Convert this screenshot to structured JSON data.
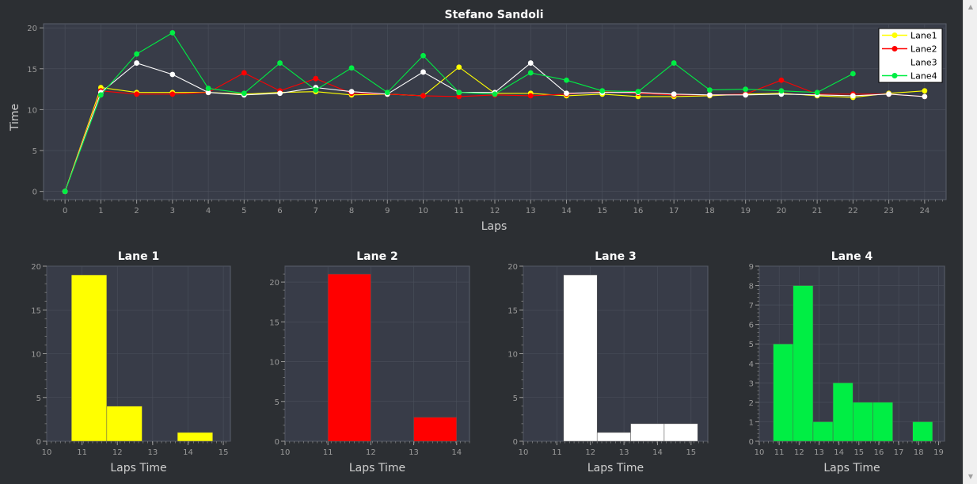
{
  "window": {
    "scrollbar": {
      "up_icon": "triangle-up-icon",
      "down_icon": "triangle-down-icon"
    }
  },
  "colors": {
    "background": "#2c2f33",
    "plot_background": "#383c48",
    "grid": "#4b505c",
    "axis_text": "#9a9a9a",
    "Lane1": "#ffff00",
    "Lane2": "#ff0000",
    "Lane3": "#ffffff",
    "Lane4": "#00ee44"
  },
  "chart_data": [
    {
      "type": "line",
      "title": "Stefano Sandoli",
      "xlabel": "Laps",
      "ylabel": "Time",
      "xlim": [
        -0.6,
        24.6
      ],
      "ylim": [
        -1,
        20.5
      ],
      "xticks": [
        0,
        1,
        2,
        3,
        4,
        5,
        6,
        7,
        8,
        9,
        10,
        11,
        12,
        13,
        14,
        15,
        16,
        17,
        18,
        19,
        20,
        21,
        22,
        23,
        24
      ],
      "yticks": [
        0,
        5,
        10,
        15,
        20
      ],
      "grid": true,
      "legend_position": "top-right",
      "series": [
        {
          "name": "Lane1",
          "color": "#ffff00",
          "x": [
            0,
            1,
            2,
            3,
            4,
            5,
            6,
            7,
            8,
            9,
            10,
            11,
            12,
            13,
            14,
            15,
            16,
            17,
            18,
            19,
            20,
            21,
            22,
            23,
            24
          ],
          "y": [
            0,
            12.7,
            12.1,
            12.1,
            12.1,
            11.9,
            12.1,
            12.2,
            11.8,
            11.9,
            11.7,
            15.2,
            12.0,
            12.0,
            11.7,
            11.9,
            11.6,
            11.6,
            11.7,
            11.9,
            12.0,
            11.7,
            11.5,
            12.0,
            12.3
          ]
        },
        {
          "name": "Lane2",
          "color": "#ff0000",
          "x": [
            0,
            1,
            2,
            3,
            4,
            5,
            6,
            7,
            8,
            9,
            10,
            11,
            12,
            13,
            14,
            15,
            16,
            17,
            18,
            19,
            20,
            21,
            22,
            23,
            24
          ],
          "y": [
            0,
            12.3,
            11.9,
            11.9,
            12.1,
            14.5,
            12.3,
            13.8,
            12.0,
            11.9,
            11.7,
            11.6,
            11.8,
            11.7,
            11.9,
            12.2,
            12.0,
            11.8,
            11.8,
            11.9,
            13.6,
            11.9,
            11.9,
            11.9,
            11.6
          ]
        },
        {
          "name": "Lane3",
          "color": "#ffffff",
          "x": [
            0,
            1,
            2,
            3,
            4,
            5,
            6,
            7,
            8,
            9,
            10,
            11,
            12,
            13,
            14,
            15,
            16,
            17,
            18,
            19,
            20,
            21,
            22,
            23,
            24
          ],
          "y": [
            0,
            12.1,
            15.7,
            14.3,
            12.1,
            11.8,
            12.0,
            12.7,
            12.2,
            11.9,
            14.6,
            12.1,
            12.1,
            15.7,
            12.0,
            12.1,
            12.1,
            11.9,
            11.8,
            11.8,
            11.9,
            11.8,
            11.7,
            11.9,
            11.6
          ]
        },
        {
          "name": "Lane4",
          "color": "#00ee44",
          "x": [
            0,
            1,
            2,
            3,
            4,
            5,
            6,
            7,
            8,
            9,
            10,
            11,
            12,
            13,
            14,
            15,
            16,
            17,
            18,
            19,
            20,
            21,
            22
          ],
          "y": [
            0,
            11.8,
            16.8,
            19.4,
            12.6,
            12.0,
            15.7,
            12.4,
            15.1,
            12.1,
            16.6,
            12.1,
            11.9,
            14.5,
            13.6,
            12.3,
            12.2,
            15.7,
            12.4,
            12.5,
            12.3,
            12.1,
            14.4
          ]
        }
      ]
    },
    {
      "type": "bar",
      "title": "Lane 1",
      "xlabel": "Laps Time",
      "color": "#ffff00",
      "xlim": [
        10,
        15.2
      ],
      "ylim": [
        0,
        20
      ],
      "xticks": [
        10,
        11,
        12,
        13,
        14,
        15
      ],
      "yticks": [
        0,
        5,
        10,
        15,
        20
      ],
      "bins": [
        [
          10.7,
          11.7,
          19
        ],
        [
          11.7,
          12.7,
          4
        ],
        [
          13.7,
          14.7,
          1
        ]
      ]
    },
    {
      "type": "bar",
      "title": "Lane 2",
      "xlabel": "Laps Time",
      "color": "#ff0000",
      "xlim": [
        10,
        14.3
      ],
      "ylim": [
        0,
        22
      ],
      "xticks": [
        10,
        11,
        12,
        13,
        14
      ],
      "yticks": [
        0,
        5,
        10,
        15,
        20
      ],
      "bins": [
        [
          11.0,
          12.0,
          21
        ],
        [
          13.0,
          14.0,
          3
        ]
      ]
    },
    {
      "type": "bar",
      "title": "Lane 3",
      "xlabel": "Laps Time",
      "color": "#ffffff",
      "xlim": [
        10,
        15.5
      ],
      "ylim": [
        0,
        20
      ],
      "xticks": [
        10,
        11,
        12,
        13,
        14,
        15
      ],
      "yticks": [
        0,
        5,
        10,
        15,
        20
      ],
      "bins": [
        [
          11.2,
          12.2,
          19
        ],
        [
          12.2,
          13.2,
          1
        ],
        [
          13.2,
          14.2,
          2
        ],
        [
          14.2,
          15.2,
          2
        ]
      ]
    },
    {
      "type": "bar",
      "title": "Lane 4",
      "xlabel": "Laps Time",
      "color": "#00ee44",
      "xlim": [
        10,
        19.3
      ],
      "ylim": [
        0,
        9
      ],
      "xticks": [
        10,
        11,
        12,
        13,
        14,
        15,
        16,
        17,
        18,
        19
      ],
      "yticks": [
        0,
        1,
        2,
        3,
        4,
        5,
        6,
        7,
        8,
        9
      ],
      "bins": [
        [
          10.7,
          11.7,
          5
        ],
        [
          11.7,
          12.7,
          8
        ],
        [
          12.7,
          13.7,
          1
        ],
        [
          13.7,
          14.7,
          3
        ],
        [
          14.7,
          15.7,
          2
        ],
        [
          15.7,
          16.7,
          2
        ],
        [
          17.7,
          18.7,
          1
        ]
      ]
    }
  ]
}
